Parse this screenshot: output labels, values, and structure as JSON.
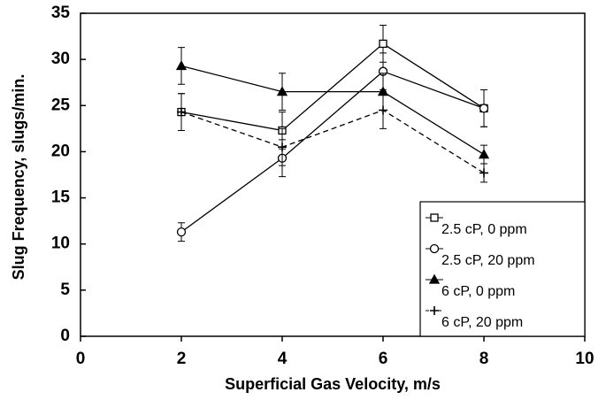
{
  "chart_data": {
    "type": "line",
    "xlabel": "Superficial Gas Velocity, m/s",
    "ylabel": "Slug Frequency, slugs/min.",
    "x": [
      2,
      4,
      6,
      8
    ],
    "series": [
      {
        "name": "2.5 cP, 0 ppm",
        "color": "#000000",
        "marker": "square",
        "line_style": "solid",
        "values": [
          24.3,
          22.3,
          31.7,
          24.7
        ],
        "errors": [
          2,
          2,
          2,
          2
        ]
      },
      {
        "name": "2.5 cP, 20 ppm",
        "color": "#000000",
        "marker": "circle",
        "line_style": "solid",
        "values": [
          11.3,
          19.3,
          28.7,
          24.7
        ],
        "errors": [
          1,
          2,
          2,
          2
        ]
      },
      {
        "name": "6 cP, 0 ppm",
        "color": "#000000",
        "marker": "triangle",
        "line_style": "solid",
        "values": [
          29.3,
          26.5,
          26.5,
          19.7
        ],
        "errors": [
          2,
          2,
          2,
          1
        ]
      },
      {
        "name": "6 cP, 20 ppm",
        "color": "#000000",
        "marker": "plus",
        "line_style": "dashed",
        "values": [
          24.3,
          20.5,
          24.5,
          17.7
        ],
        "errors": [
          2,
          2,
          2,
          1
        ]
      }
    ],
    "xlim": [
      0,
      10
    ],
    "xticks": [
      0,
      2,
      4,
      6,
      8,
      10
    ],
    "ylim": [
      0,
      35
    ],
    "yticks": [
      0,
      5,
      10,
      15,
      20,
      25,
      30,
      35
    ],
    "grid": false,
    "legend": "lower right"
  }
}
